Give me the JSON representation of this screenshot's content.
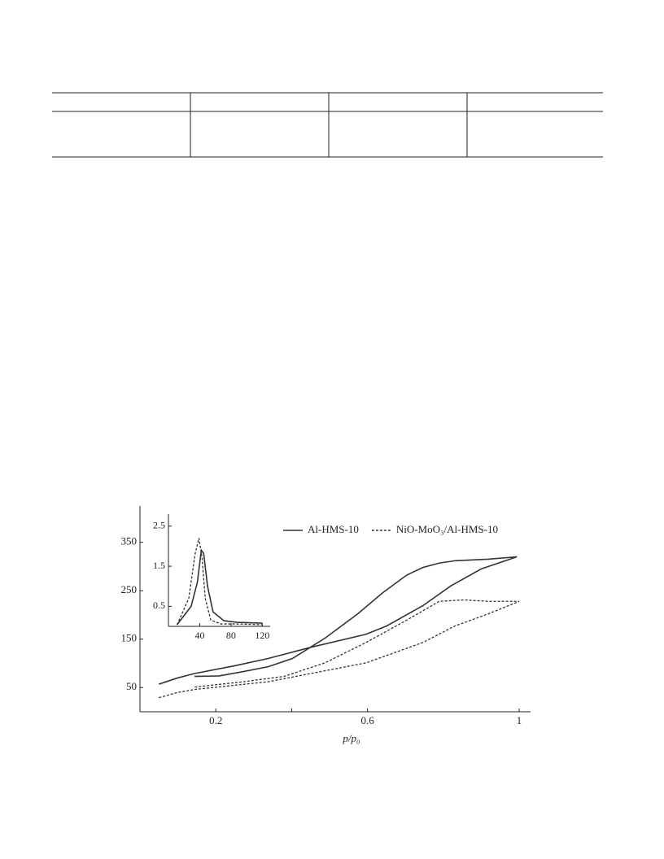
{
  "chart_data": [
    {
      "type": "line",
      "x_label": "p/p₀",
      "xlim": [
        0,
        1.03
      ],
      "xticks": [
        0.2,
        0.4,
        0.6,
        1.0
      ],
      "x_tick_labels_shown": [
        0.2,
        0.6,
        1.0
      ],
      "ylim": [
        0,
        425
      ],
      "yticks": [
        50,
        150,
        250,
        350
      ],
      "legend": "upper right",
      "series": [
        {
          "name": "Al-HMS-10",
          "color": "#333333",
          "dash": false,
          "x": [
            0.05,
            0.1,
            0.144,
            0.25,
            0.338,
            0.45,
            0.596,
            0.65,
            0.746,
            0.82,
            0.9,
            0.994,
            0.918,
            0.832,
            0.789,
            0.746,
            0.703,
            0.639,
            0.574,
            0.488,
            0.402,
            0.338,
            0.273,
            0.209,
            0.144
          ],
          "values": [
            57,
            70,
            79,
            95,
            110,
            133,
            160,
            177,
            219,
            260,
            295,
            320,
            315,
            312,
            307,
            298,
            282,
            245,
            202,
            152,
            110,
            93,
            83,
            74,
            73
          ]
        },
        {
          "name": "NiO-MoO₃/Al-HMS-10",
          "color": "#333333",
          "dash": true,
          "x": [
            0.05,
            0.1,
            0.144,
            0.338,
            0.596,
            0.746,
            0.83,
            0.918,
            1.0,
            0.918,
            0.854,
            0.789,
            0.703,
            0.596,
            0.488,
            0.38,
            0.273,
            0.144
          ],
          "values": [
            29,
            40,
            46,
            62,
            101,
            143,
            177,
            202,
            228,
            228,
            231,
            228,
            189,
            143,
            101,
            73,
            62,
            51
          ]
        }
      ]
    },
    {
      "type": "line",
      "xlim": [
        0,
        130
      ],
      "xticks": [
        40,
        80,
        120
      ],
      "ylim": [
        0,
        2.8
      ],
      "yticks": [
        0.5,
        1.5,
        2.5
      ],
      "series": [
        {
          "color": "#333333",
          "dash": false,
          "x": [
            11,
            29,
            37,
            42,
            45,
            50,
            57,
            71,
            88,
            120
          ],
          "values": [
            0.04,
            0.5,
            1.1,
            1.9,
            1.82,
            1.0,
            0.36,
            0.14,
            0.1,
            0.08
          ]
        },
        {
          "color": "#333333",
          "dash": true,
          "x": [
            11,
            26,
            34,
            39,
            43,
            47,
            54,
            67,
            88,
            120
          ],
          "values": [
            0.04,
            0.7,
            1.8,
            2.2,
            1.7,
            0.7,
            0.16,
            0.06,
            0.06,
            0.04
          ]
        }
      ]
    }
  ]
}
